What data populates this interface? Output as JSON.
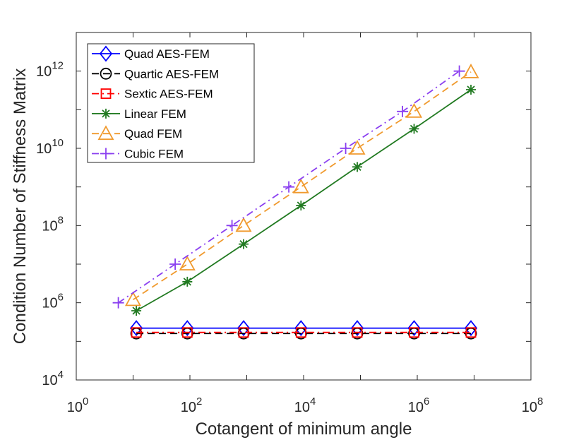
{
  "chart_data": {
    "type": "line",
    "title": "",
    "xlabel": "Cotangent of minimum angle",
    "ylabel": "Condition Number of Stiffness Matrix",
    "xscale": "log",
    "yscale": "log",
    "xlim": [
      1,
      100000000
    ],
    "ylim": [
      10000,
      10000000000000
    ],
    "grid": false,
    "legend_location": "top-left",
    "x_ticks": [
      {
        "value": 1,
        "base": "10",
        "exp": "0"
      },
      {
        "value": 100,
        "base": "10",
        "exp": "2"
      },
      {
        "value": 10000,
        "base": "10",
        "exp": "4"
      },
      {
        "value": 1000000,
        "base": "10",
        "exp": "6"
      },
      {
        "value": 100000000,
        "base": "10",
        "exp": "8"
      }
    ],
    "y_ticks": [
      {
        "value": 10000,
        "base": "10",
        "exp": "4"
      },
      {
        "value": 1000000,
        "base": "10",
        "exp": "6"
      },
      {
        "value": 100000000,
        "base": "10",
        "exp": "8"
      },
      {
        "value": 10000000000,
        "base": "10",
        "exp": "10"
      },
      {
        "value": 1000000000000,
        "base": "10",
        "exp": "12"
      }
    ],
    "series": [
      {
        "name": "Quad AES-FEM",
        "color": "#0000ff",
        "dash": "solid",
        "marker": "diamond",
        "x": [
          11.4,
          90,
          880,
          9000,
          88000,
          880000,
          8800000
        ],
        "y": [
          220000,
          220000,
          220000,
          220000,
          220000,
          220000,
          220000
        ]
      },
      {
        "name": "Quartic AES-FEM",
        "color": "#000000",
        "dash": "dashed",
        "marker": "circle",
        "x": [
          11.4,
          90,
          880,
          9000,
          88000,
          880000,
          8800000
        ],
        "y": [
          160000,
          160000,
          160000,
          160000,
          160000,
          160000,
          160000
        ]
      },
      {
        "name": "Sextic AES-FEM",
        "color": "#ff0000",
        "dash": "dashdot",
        "marker": "square",
        "x": [
          11.4,
          90,
          880,
          9000,
          88000,
          880000,
          8800000
        ],
        "y": [
          170000,
          170000,
          170000,
          170000,
          170000,
          170000,
          170000
        ]
      },
      {
        "name": "Linear FEM",
        "color": "#217a21",
        "dash": "solid",
        "marker": "asterisk",
        "x": [
          11.4,
          90,
          880,
          9000,
          88000,
          880000,
          8800000
        ],
        "y": [
          620000,
          3500000,
          33000000,
          330000000,
          3300000000,
          32000000000,
          330000000000
        ]
      },
      {
        "name": "Quad FEM",
        "color": "#f09a2e",
        "dash": "dashed",
        "marker": "triangle",
        "x": [
          10,
          90,
          880,
          9000,
          88000,
          880000,
          8800000
        ],
        "y": [
          1200000,
          10000000,
          100000000,
          1000000000,
          10000000000,
          90000000000,
          950000000000
        ]
      },
      {
        "name": "Cubic FEM",
        "color": "#8a3ff0",
        "dash": "dashdot",
        "marker": "plus",
        "x": [
          5.5,
          55,
          550,
          5500,
          55000,
          550000,
          5500000
        ],
        "y": [
          1000000,
          10000000,
          100000000,
          1000000000,
          10000000000,
          90000000000,
          1000000000000
        ]
      }
    ]
  }
}
